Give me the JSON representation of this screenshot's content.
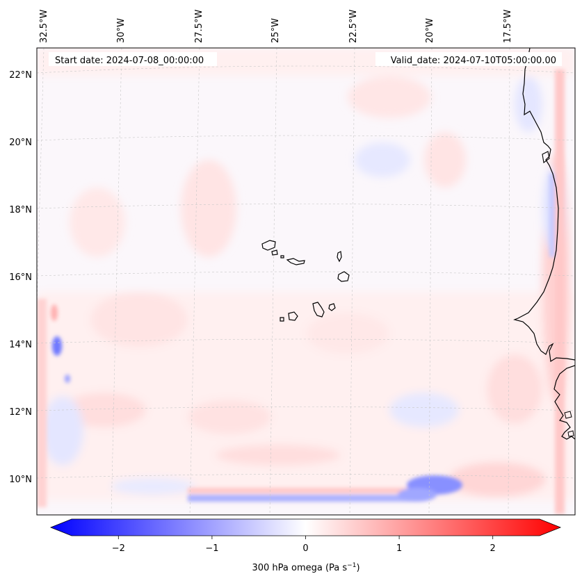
{
  "header": {
    "start_date": "Start date: 2024-07-08_00:00:00",
    "valid_date": "Valid_date: 2024-07-10T05:00:00.00"
  },
  "map": {
    "lon_labels": [
      "32.5°W",
      "30°W",
      "27.5°W",
      "25°W",
      "22.5°W",
      "20°W",
      "17.5°W"
    ],
    "lat_labels": [
      "22°N",
      "20°N",
      "18°N",
      "16°N",
      "14°N",
      "12°N",
      "10°N"
    ],
    "islands": [
      "Santo Antão",
      "São Vicente",
      "Santa Luzia",
      "São Nicolau",
      "Sal",
      "Boa Vista",
      "Maio",
      "Santiago",
      "Fogo",
      "Brava"
    ]
  },
  "colorbar": {
    "label": "300 hPa omega (Pa s",
    "label_sup": "−1",
    "label_close": ")",
    "ticks": [
      "−2",
      "−1",
      "0",
      "1",
      "2"
    ],
    "tick_values": [
      -2,
      -1,
      0,
      1,
      2
    ],
    "range": [
      -2.5,
      2.5
    ],
    "colors": {
      "low": "#0000ff",
      "mid": "#ffffff",
      "high": "#ff0000"
    }
  }
}
